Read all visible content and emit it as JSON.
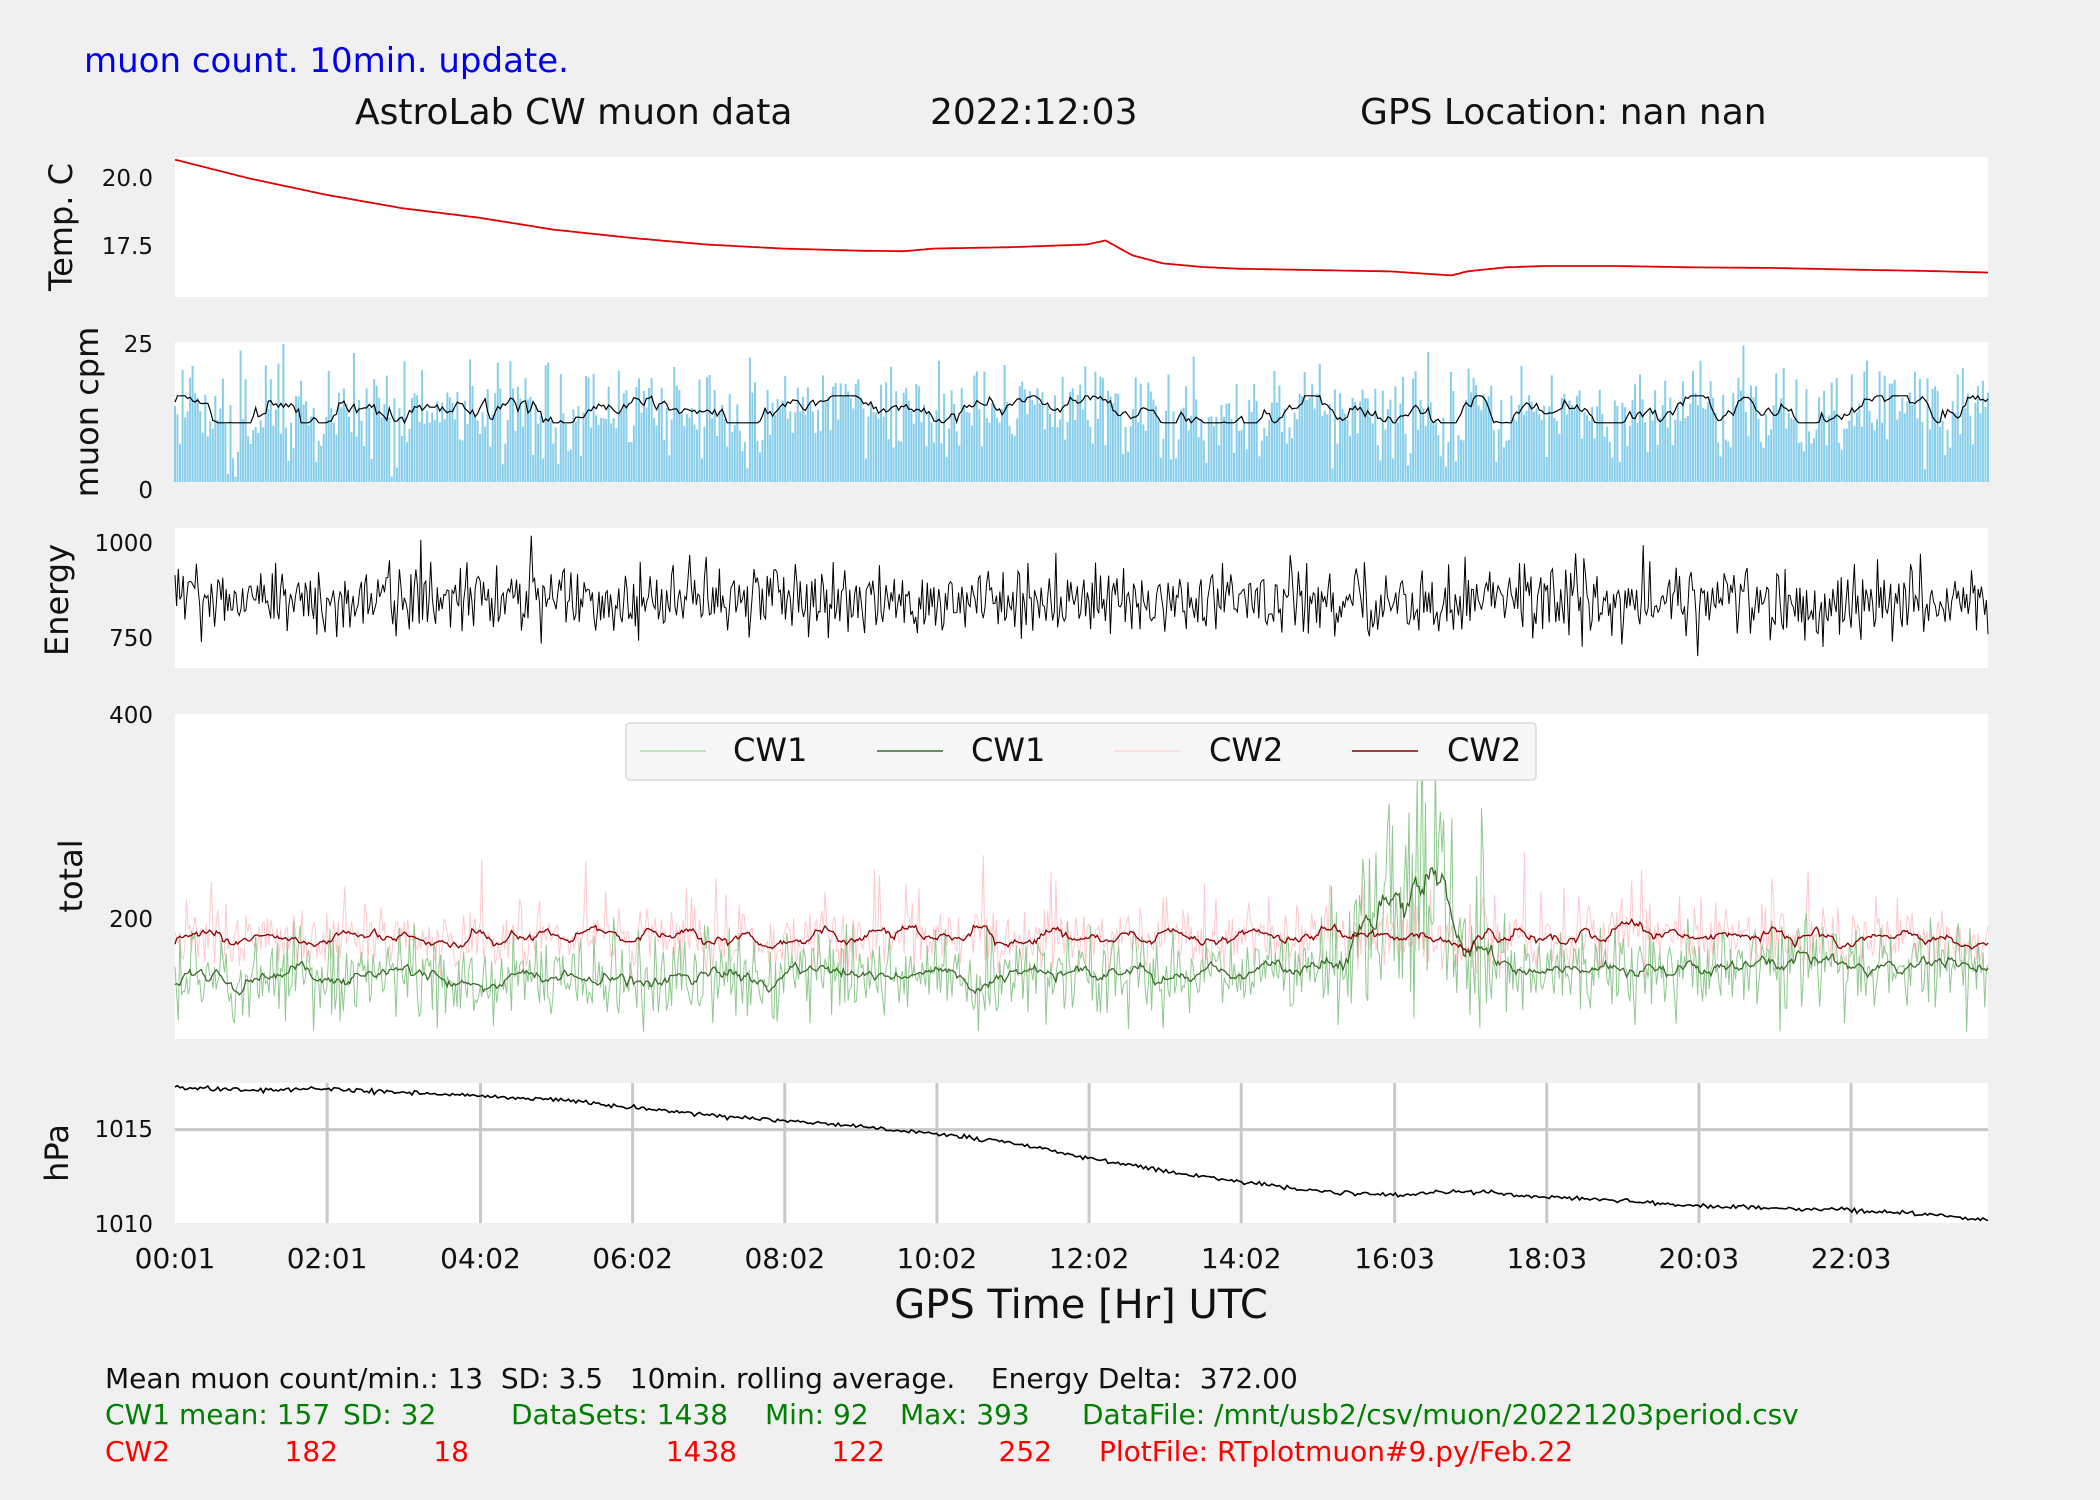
{
  "header": {
    "update_note": "muon count.  10min. update.",
    "title": "AstroLab CW muon data",
    "date": "2022:12:03",
    "gps_location": "GPS Location: nan   nan"
  },
  "colors": {
    "background": "#f0f0f0",
    "panel": "#ffffff",
    "temp_line": "#e00000",
    "cpm_bars": "#87ceeb",
    "cpm_avg": "#000000",
    "energy_line": "#000000",
    "cw1_raw": "#8fc98f",
    "cw1_avg": "#3a6b2a",
    "cw2_raw": "#ffc8cc",
    "cw2_avg": "#8b0000",
    "pressure_line": "#000000",
    "grid": "#c8c8c8",
    "note_blue": "#0000ee",
    "stats_green": "#008000",
    "stats_red": "#ff0000"
  },
  "chart_data": [
    {
      "type": "line",
      "ylabel": "Temp. C",
      "yticks": [
        20.0,
        17.5
      ],
      "ylim": [
        15.5,
        20.7
      ],
      "x_hours": [
        0.02,
        1.0,
        2.0,
        3.0,
        4.0,
        5.0,
        6.0,
        7.0,
        8.0,
        9.0,
        9.6,
        10.0,
        11.0,
        12.0,
        12.25,
        12.6,
        13.0,
        13.5,
        14.0,
        15.0,
        16.0,
        16.8,
        17.0,
        17.5,
        18.0,
        19.0,
        20.0,
        21.0,
        22.0,
        23.0,
        23.97
      ],
      "values": [
        20.6,
        19.9,
        19.3,
        18.8,
        18.45,
        18.0,
        17.7,
        17.45,
        17.3,
        17.22,
        17.2,
        17.3,
        17.35,
        17.45,
        17.6,
        17.05,
        16.75,
        16.62,
        16.55,
        16.5,
        16.45,
        16.3,
        16.45,
        16.6,
        16.65,
        16.65,
        16.6,
        16.58,
        16.52,
        16.47,
        16.4
      ]
    },
    {
      "type": "bar",
      "ylabel": "muon cpm",
      "yticks": [
        25,
        0
      ],
      "ylim": [
        0,
        26
      ],
      "mean": 13,
      "sd": 3.5,
      "max": 26,
      "rolling_average": "10min.",
      "avg_range": [
        11,
        16
      ]
    },
    {
      "type": "line",
      "ylabel": "Energy",
      "yticks": [
        1000,
        750
      ],
      "ylim": [
        690,
        1060
      ],
      "mean": 870,
      "max": 1040,
      "min": 670
    },
    {
      "type": "line",
      "ylabel": "total",
      "yticks": [
        400,
        200
      ],
      "ylim": [
        85,
        400
      ],
      "legend": [
        "CW1",
        "CW1",
        "CW2",
        "CW2"
      ],
      "legend_position": "top-center",
      "series": [
        {
          "name": "CW1",
          "mean": 157,
          "sd": 32,
          "min": 92,
          "max": 393,
          "burst_hours": [
            15.2,
            17.3
          ],
          "burst_peak": 393
        },
        {
          "name": "CW2",
          "mean": 182,
          "sd": 18,
          "min": 122,
          "max": 252
        }
      ]
    },
    {
      "type": "line",
      "ylabel": "hPa",
      "yticks": [
        1015,
        1010
      ],
      "ylim": [
        1010,
        1017.5
      ],
      "grid": true,
      "x_hours": [
        0.02,
        1.0,
        2.0,
        3.0,
        4.0,
        5.0,
        6.0,
        7.0,
        8.0,
        9.0,
        10.0,
        11.0,
        12.0,
        13.0,
        14.0,
        15.0,
        16.0,
        17.0,
        18.0,
        19.0,
        20.0,
        21.0,
        22.0,
        23.0,
        23.97
      ],
      "values": [
        1017.3,
        1017.1,
        1017.2,
        1017.0,
        1016.8,
        1016.6,
        1016.2,
        1015.8,
        1015.5,
        1015.2,
        1014.8,
        1014.3,
        1013.5,
        1012.8,
        1012.2,
        1011.7,
        1011.5,
        1011.7,
        1011.4,
        1011.2,
        1010.9,
        1010.8,
        1010.7,
        1010.5,
        1010.1
      ]
    }
  ],
  "x_axis": {
    "label": "GPS Time  [Hr] UTC",
    "ticks": [
      "00:01",
      "02:01",
      "04:02",
      "06:02",
      "08:02",
      "10:02",
      "12:02",
      "14:02",
      "16:03",
      "18:03",
      "20:03",
      "22:03"
    ],
    "tick_hours": [
      0.017,
      2.017,
      4.033,
      6.033,
      8.033,
      10.033,
      12.033,
      14.033,
      16.05,
      18.05,
      20.05,
      22.05
    ],
    "range_hours": [
      0.017,
      23.85
    ]
  },
  "stats": {
    "line1": "Mean muon count/min.: 13  SD: 3.5   10min. rolling average.    Energy Delta:  372.00",
    "cw1": {
      "label": "CW1 mean: 157",
      "sd": "SD: 32",
      "datasets": "DataSets: 1438",
      "min": "Min: 92",
      "max": "Max: 393",
      "file": "DataFile: /mnt/usb2/csv/muon/20221203period.csv"
    },
    "cw2": {
      "label": "CW2",
      "mean": "182",
      "sd": "18",
      "datasets": "1438",
      "min": "122",
      "max": "252",
      "file": "PlotFile: RTplotmuon#9.py/Feb.22"
    }
  }
}
